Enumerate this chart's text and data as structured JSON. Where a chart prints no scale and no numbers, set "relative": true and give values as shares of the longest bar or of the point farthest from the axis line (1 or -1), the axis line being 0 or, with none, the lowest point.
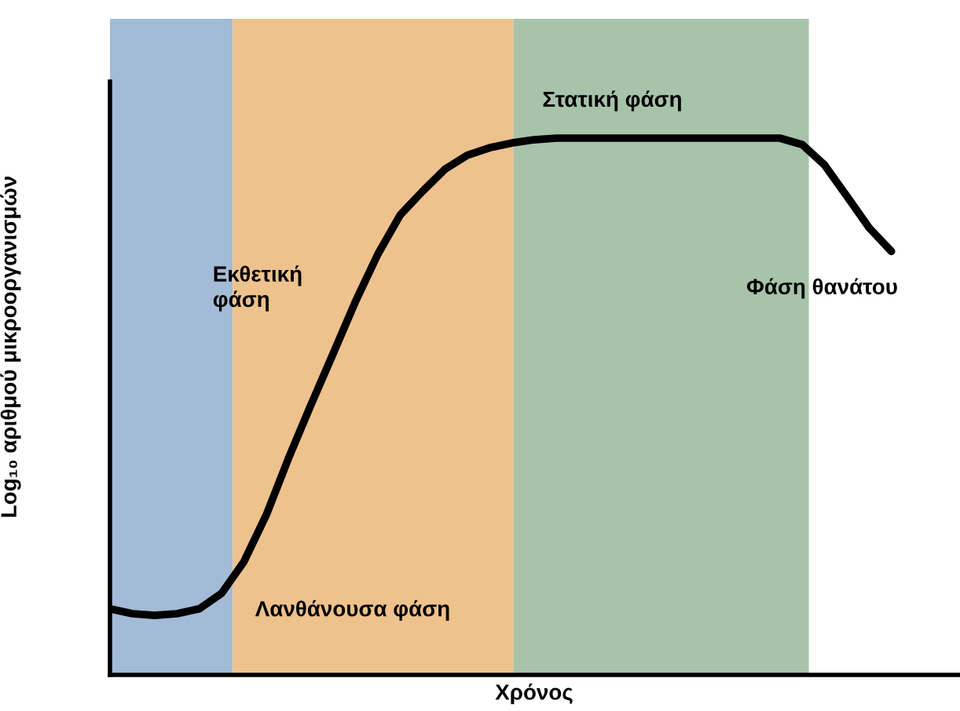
{
  "chart_data": {
    "type": "line",
    "relative": true,
    "xlabel": "Χρόνος",
    "ylabel": "Log₁₀ αριθμού μικροοργανισμών",
    "categories": [
      null,
      null,
      null,
      null,
      null,
      null,
      null,
      null,
      null,
      null,
      null,
      null,
      null,
      null,
      null,
      null,
      null,
      null,
      null,
      null,
      null,
      null,
      null,
      null,
      null,
      null,
      null,
      null,
      null,
      null,
      null,
      null,
      null,
      null,
      null,
      null,
      null,
      null,
      null
    ],
    "series": [
      {
        "color": "#000000",
        "values": [
          0.123,
          0.114,
          0.111,
          0.114,
          0.123,
          0.152,
          0.211,
          0.298,
          0.404,
          0.503,
          0.599,
          0.696,
          0.784,
          0.857,
          0.901,
          0.942,
          0.968,
          0.982,
          0.991,
          0.997,
          1,
          1,
          1,
          1,
          1,
          1,
          1,
          1,
          1,
          1,
          1,
          0.988,
          0.95,
          0.892,
          0.833,
          0.789,
          null,
          null,
          null
        ]
      }
    ],
    "annotations": [
      "Λανθάνουσα φάση",
      "Εκθετική\nφάση",
      "Στατική φάση",
      "Φάση θανάτου"
    ],
    "legend": false,
    "marker": "none",
    "line_style": "solid"
  }
}
